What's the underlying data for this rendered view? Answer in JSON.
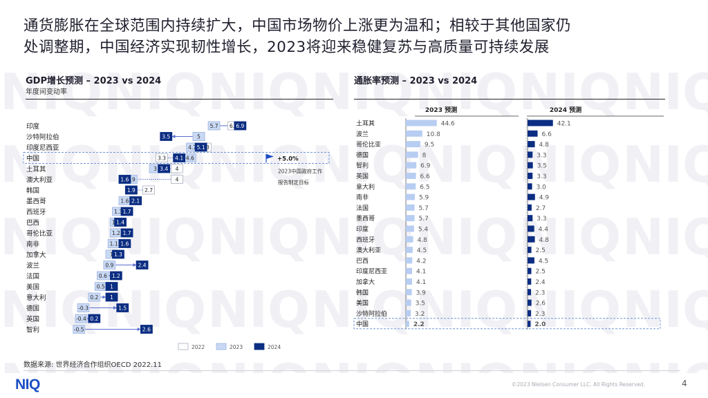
{
  "slide": {
    "title_line1": "通货膨胀在全球范围内持续扩大，中国市场物价上涨更为温和；相较于其他国家仍",
    "title_line2": "处调整期，中国经济实现韧性增长，2023将迎来稳健复苏与高质量可持续发展",
    "watermark_text": "NIQ",
    "source": "数据来源: 世界经济合作组织OECD  2022.11",
    "logo": "NIQ",
    "copyright": "©2023  Nielsen Consumer LLC. All Rights Reserved.",
    "page_number": "4"
  },
  "colors": {
    "y2022": "#ffffff",
    "y2023": "#c9d9f4",
    "y2024": "#0b2d82",
    "bar2023": "#b7cdf2",
    "highlight": "#6f95d6",
    "arrow": "#5a6fd0",
    "china_arrow": "#e83e8c"
  },
  "chart_data": [
    {
      "type": "scatter",
      "title": "GDP增长预测 – 2023 vs 2024",
      "subtitle": "年度间变动率",
      "categories": [
        "印度",
        "沙特阿拉伯",
        "印度尼西亚",
        "中国",
        "土耳其",
        "澳大利亚",
        "韩国",
        "墨西哥",
        "西班牙",
        "巴西",
        "哥伦比亚",
        "南非",
        "加拿大",
        "波兰",
        "法国",
        "美国",
        "意大利",
        "德国",
        "英国",
        "智利"
      ],
      "series": [
        {
          "name": "2022",
          "values": [
            6.6,
            5.0,
            5.3,
            3.3,
            4.0,
            4.0,
            2.7,
            null,
            null,
            null,
            null,
            null,
            null,
            null,
            null,
            null,
            null,
            null,
            null,
            null
          ]
        },
        {
          "name": "2023",
          "values": [
            5.7,
            5.0,
            4.7,
            4.6,
            3.0,
            1.9,
            1.9,
            1.6,
            1.3,
            1.2,
            1.2,
            1.1,
            1.0,
            0.9,
            0.6,
            0.5,
            0.2,
            -0.3,
            -0.4,
            -0.5
          ]
        },
        {
          "name": "2024",
          "values": [
            6.9,
            3.5,
            5.1,
            4.1,
            3.4,
            1.6,
            1.9,
            2.1,
            1.7,
            1.4,
            1.7,
            1.6,
            1.3,
            2.4,
            1.2,
            1.0,
            1.0,
            1.5,
            0.2,
            2.6
          ]
        }
      ],
      "annotation": {
        "marker": "+5.0%",
        "caption_line1": "2023中国政府工作",
        "caption_line2": "报告制定目标"
      },
      "legend": [
        "2022",
        "2023",
        "2024"
      ],
      "legend_position": "bottom-right"
    },
    {
      "type": "bar",
      "title": "通胀率预测 – 2023 vs 2024",
      "panel_headers": [
        "2023 预测",
        "2024 预测"
      ],
      "categories": [
        "土耳其",
        "波兰",
        "哥伦比亚",
        "德国",
        "智利",
        "英国",
        "意大利",
        "南非",
        "法国",
        "墨西哥",
        "印度",
        "西班牙",
        "澳大利亚",
        "巴西",
        "印度尼西亚",
        "加拿大",
        "韩国",
        "美国",
        "沙特阿拉伯",
        "中国"
      ],
      "series": [
        {
          "name": "2023 预测",
          "values": [
            44.6,
            10.8,
            9.5,
            8,
            6.9,
            6.6,
            6.5,
            5.9,
            5.7,
            5.7,
            5.4,
            4.8,
            4.5,
            4.2,
            4.1,
            4.1,
            3.9,
            3.5,
            3.2,
            2.2
          ]
        },
        {
          "name": "2024 预测",
          "values": [
            42.1,
            6.6,
            4.8,
            3.3,
            3.5,
            3.3,
            3.0,
            4.9,
            2.7,
            3.3,
            4.4,
            4.8,
            2.5,
            4.5,
            2.5,
            2.4,
            2.3,
            2.6,
            2.3,
            2.0
          ]
        }
      ],
      "value_labels_2023": [
        "44.6",
        "10.8",
        "9.5",
        "8",
        "6.9",
        "6.6",
        "6.5",
        "5.9",
        "5.7",
        "5.7",
        "5.4",
        "4.8",
        "4.5",
        "4.2",
        "4.1",
        "4.1",
        "3.9",
        "3.5",
        "3.2",
        "2.2"
      ],
      "value_labels_2024": [
        "42.1",
        "6.6",
        "4.8",
        "3.3",
        "3.5",
        "3.3",
        "3.0",
        "4.9",
        "2.7",
        "3.3",
        "4.4",
        "4.8",
        "2.5",
        "4.5",
        "2.5",
        "2.4",
        "2.3",
        "2.6",
        "2.3",
        "2.0"
      ],
      "highlight_category": "中国"
    }
  ]
}
